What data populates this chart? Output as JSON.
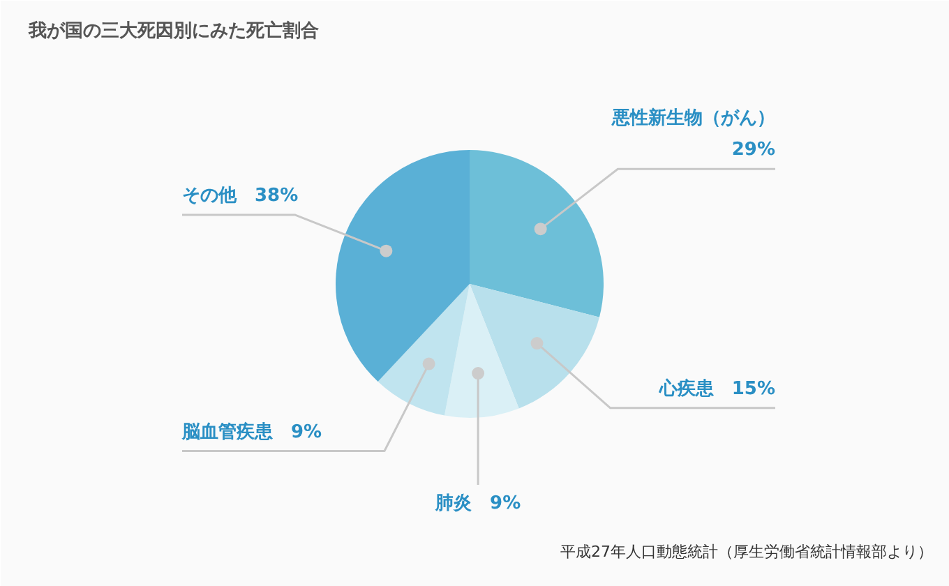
{
  "chart_data": {
    "type": "pie",
    "title": "我が国の三大死因別にみた死亡割合",
    "categories": [
      "悪性新生物（がん）",
      "心疾患",
      "肺炎",
      "脳血管疾患",
      "その他"
    ],
    "values": [
      29,
      15,
      9,
      9,
      38
    ],
    "value_labels": [
      "29%",
      "15%",
      "9%",
      "9%",
      "38%"
    ],
    "colors": [
      "#6dbfd8",
      "#b8e0ec",
      "#daf0f6",
      "#c0e4ef",
      "#5ab0d6"
    ],
    "annotations": [
      "平成27年人口動態統計（厚生労働省統計情報部より）"
    ]
  }
}
